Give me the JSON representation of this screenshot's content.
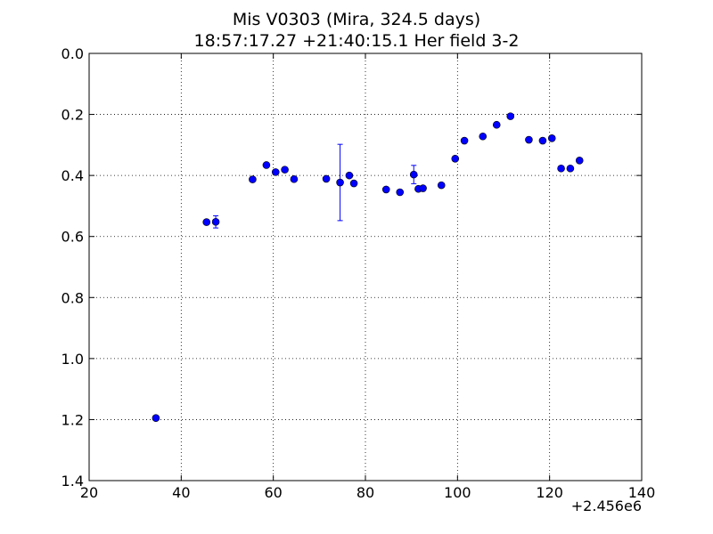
{
  "chart_data": {
    "type": "scatter",
    "title": "Mis V0303 (Mira, 324.5 days)",
    "subtitle": "18:57:17.27 +21:40:15.1 Her field 3-2",
    "x_offset_label": "+2.456e6",
    "xlim": [
      20,
      140
    ],
    "ylim": [
      0.0,
      1.4
    ],
    "y_inverted": true,
    "xticks": [
      "20",
      "40",
      "60",
      "80",
      "100",
      "120",
      "140"
    ],
    "yticks": [
      "0.0",
      "0.2",
      "0.4",
      "0.6",
      "0.8",
      "1.0",
      "1.2",
      "1.4"
    ],
    "grid": true,
    "marker_color": "#0000ff",
    "points": [
      {
        "x": 34.5,
        "y": 1.195,
        "err": 0.0
      },
      {
        "x": 45.5,
        "y": 0.553,
        "err": 0.0
      },
      {
        "x": 47.5,
        "y": 0.552,
        "err": 0.02
      },
      {
        "x": 55.5,
        "y": 0.413,
        "err": 0.0
      },
      {
        "x": 58.5,
        "y": 0.366,
        "err": 0.0
      },
      {
        "x": 60.5,
        "y": 0.389,
        "err": 0.0
      },
      {
        "x": 62.5,
        "y": 0.381,
        "err": 0.0
      },
      {
        "x": 64.5,
        "y": 0.412,
        "err": 0.0
      },
      {
        "x": 71.5,
        "y": 0.411,
        "err": 0.0
      },
      {
        "x": 74.5,
        "y": 0.423,
        "err": 0.125
      },
      {
        "x": 76.5,
        "y": 0.4,
        "err": 0.0
      },
      {
        "x": 77.5,
        "y": 0.426,
        "err": 0.0
      },
      {
        "x": 84.5,
        "y": 0.446,
        "err": 0.0
      },
      {
        "x": 87.5,
        "y": 0.455,
        "err": 0.0
      },
      {
        "x": 90.5,
        "y": 0.397,
        "err": 0.03
      },
      {
        "x": 91.5,
        "y": 0.444,
        "err": 0.0
      },
      {
        "x": 92.5,
        "y": 0.442,
        "err": 0.0
      },
      {
        "x": 96.5,
        "y": 0.432,
        "err": 0.0
      },
      {
        "x": 99.5,
        "y": 0.345,
        "err": 0.0
      },
      {
        "x": 101.5,
        "y": 0.286,
        "err": 0.0
      },
      {
        "x": 105.5,
        "y": 0.272,
        "err": 0.0
      },
      {
        "x": 108.5,
        "y": 0.234,
        "err": 0.0
      },
      {
        "x": 111.5,
        "y": 0.206,
        "err": 0.0
      },
      {
        "x": 115.5,
        "y": 0.283,
        "err": 0.0
      },
      {
        "x": 118.5,
        "y": 0.286,
        "err": 0.0
      },
      {
        "x": 120.5,
        "y": 0.278,
        "err": 0.0
      },
      {
        "x": 122.5,
        "y": 0.377,
        "err": 0.0
      },
      {
        "x": 124.5,
        "y": 0.377,
        "err": 0.0
      },
      {
        "x": 126.5,
        "y": 0.351,
        "err": 0.0
      }
    ]
  }
}
